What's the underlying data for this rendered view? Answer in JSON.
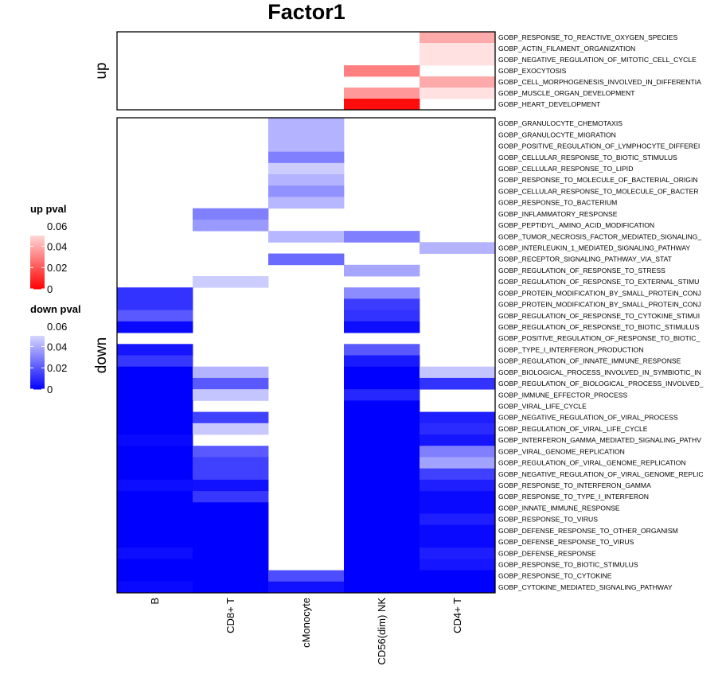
{
  "chart_data": {
    "type": "heatmap",
    "title": "Factor1",
    "columns": [
      "B",
      "CD8+ T",
      "cMonocyte",
      "CD56(dim) NK",
      "CD4+ T"
    ],
    "blocks": [
      {
        "name": "up",
        "rows": [
          "GOBP_RESPONSE_TO_REACTIVE_OXYGEN_SPECIES",
          "GOBP_ACTIN_FILAMENT_ORGANIZATION",
          "GOBP_NEGATIVE_REGULATION_OF_MITOTIC_CELL_CYCLE",
          "GOBP_EXOCYTOSIS",
          "GOBP_CELL_MORPHOGENESIS_INVOLVED_IN_DIFFERENTIA",
          "GOBP_MUSCLE_ORGAN_DEVELOPMENT",
          "GOBP_HEART_DEVELOPMENT"
        ],
        "values": [
          [
            null,
            null,
            null,
            null,
            0.04
          ],
          [
            null,
            null,
            null,
            null,
            0.053
          ],
          [
            null,
            null,
            null,
            null,
            0.053
          ],
          [
            null,
            null,
            null,
            0.03,
            null
          ],
          [
            null,
            null,
            null,
            null,
            0.04
          ],
          [
            null,
            null,
            null,
            0.036,
            0.053
          ],
          [
            null,
            null,
            null,
            0.003,
            null
          ]
        ]
      },
      {
        "name": "down",
        "rows": [
          "GOBP_GRANULOCYTE_CHEMOTAXIS",
          "GOBP_GRANULOCYTE_MIGRATION",
          "GOBP_POSITIVE_REGULATION_OF_LYMPHOCYTE_DIFFEREI",
          "GOBP_CELLULAR_RESPONSE_TO_BIOTIC_STIMULUS",
          "GOBP_CELLULAR_RESPONSE_TO_LIPID",
          "GOBP_RESPONSE_TO_MOLECULE_OF_BACTERIAL_ORIGIN",
          "GOBP_CELLULAR_RESPONSE_TO_MOLECULE_OF_BACTER",
          "GOBP_RESPONSE_TO_BACTERIUM",
          "GOBP_INFLAMMATORY_RESPONSE",
          "GOBP_PEPTIDYL_AMINO_ACID_MODIFICATION",
          "GOBP_TUMOR_NECROSIS_FACTOR_MEDIATED_SIGNALING_",
          "GOBP_INTERLEUKIN_1_MEDIATED_SIGNALING_PATHWAY",
          "GOBP_RECEPTOR_SIGNALING_PATHWAY_VIA_STAT",
          "GOBP_REGULATION_OF_RESPONSE_TO_STRESS",
          "GOBP_REGULATION_OF_RESPONSE_TO_EXTERNAL_STIMU",
          "GOBP_PROTEIN_MODIFICATION_BY_SMALL_PROTEIN_CONJ",
          "GOBP_PROTEIN_MODIFICATION_BY_SMALL_PROTEIN_CONJ",
          "GOBP_REGULATION_OF_RESPONSE_TO_CYTOKINE_STIMUI",
          "GOBP_REGULATION_OF_RESPONSE_TO_BIOTIC_STIMULUS",
          "GOBP_POSITIVE_REGULATION_OF_RESPONSE_TO_BIOTIC_",
          "GOBP_TYPE_I_INTERFERON_PRODUCTION",
          "GOBP_REGULATION_OF_INNATE_IMMUNE_RESPONSE",
          "GOBP_BIOLOGICAL_PROCESS_INVOLVED_IN_SYMBIOTIC_IN",
          "GOBP_REGULATION_OF_BIOLOGICAL_PROCESS_INVOLVED_",
          "GOBP_IMMUNE_EFFECTOR_PROCESS",
          "GOBP_VIRAL_LIFE_CYCLE",
          "GOBP_NEGATIVE_REGULATION_OF_VIRAL_PROCESS",
          "GOBP_REGULATION_OF_VIRAL_LIFE_CYCLE",
          "GOBP_INTERFERON_GAMMA_MEDIATED_SIGNALING_PATHV",
          "GOBP_VIRAL_GENOME_REPLICATION",
          "GOBP_REGULATION_OF_VIRAL_GENOME_REPLICATION",
          "GOBP_NEGATIVE_REGULATION_OF_VIRAL_GENOME_REPLIC",
          "GOBP_RESPONSE_TO_INTERFERON_GAMMA",
          "GOBP_RESPONSE_TO_TYPE_I_INTERFERON",
          "GOBP_INNATE_IMMUNE_RESPONSE",
          "GOBP_RESPONSE_TO_VIRUS",
          "GOBP_DEFENSE_RESPONSE_TO_OTHER_ORGANISM",
          "GOBP_DEFENSE_RESPONSE_TO_VIRUS",
          "GOBP_DEFENSE_RESPONSE",
          "GOBP_RESPONSE_TO_BIOTIC_STIMULUS",
          "GOBP_RESPONSE_TO_CYTOKINE",
          "GOBP_CYTOKINE_MEDIATED_SIGNALING_PATHWAY"
        ],
        "values": [
          [
            null,
            null,
            0.042,
            null,
            null
          ],
          [
            null,
            null,
            0.042,
            null,
            null
          ],
          [
            null,
            null,
            0.042,
            null,
            null
          ],
          [
            null,
            null,
            0.03,
            null,
            null
          ],
          [
            null,
            null,
            0.048,
            null,
            null
          ],
          [
            null,
            null,
            0.042,
            null,
            null
          ],
          [
            null,
            null,
            0.034,
            null,
            null
          ],
          [
            null,
            null,
            0.043,
            null,
            null
          ],
          [
            null,
            0.03,
            null,
            null,
            null
          ],
          [
            null,
            0.036,
            null,
            null,
            null
          ],
          [
            null,
            null,
            0.043,
            0.03,
            null
          ],
          [
            null,
            null,
            null,
            null,
            0.042
          ],
          [
            null,
            null,
            0.025,
            null,
            null
          ],
          [
            null,
            null,
            null,
            0.039,
            null
          ],
          [
            null,
            0.048,
            null,
            null,
            null
          ],
          [
            0.012,
            null,
            null,
            0.033,
            null
          ],
          [
            0.012,
            null,
            null,
            0.014,
            null
          ],
          [
            0.021,
            null,
            null,
            0.012,
            null
          ],
          [
            0.002,
            null,
            null,
            0.003,
            null
          ],
          [
            null,
            null,
            null,
            null,
            null
          ],
          [
            0.005,
            null,
            null,
            0.021,
            null
          ],
          [
            0.013,
            null,
            null,
            0.006,
            null
          ],
          [
            0.0,
            0.042,
            null,
            0.0,
            0.046
          ],
          [
            0.0,
            0.021,
            null,
            0.0,
            0.012
          ],
          [
            0.0,
            0.046,
            null,
            0.009,
            null
          ],
          [
            0.0,
            null,
            null,
            0.0,
            null
          ],
          [
            0.0,
            0.015,
            null,
            0.0,
            0.007
          ],
          [
            0.0,
            0.047,
            null,
            0.0,
            0.01
          ],
          [
            0.002,
            null,
            null,
            0.0,
            0.005
          ],
          [
            0.0,
            0.021,
            null,
            0.0,
            0.03
          ],
          [
            0.0,
            0.015,
            null,
            0.0,
            0.038
          ],
          [
            0.0,
            0.015,
            null,
            0.0,
            0.015
          ],
          [
            0.003,
            0.004,
            null,
            0.0,
            0.007
          ],
          [
            0.0,
            0.013,
            null,
            0.0,
            0.002
          ],
          [
            0.0,
            0.0,
            null,
            0.0,
            0.002
          ],
          [
            0.0,
            0.0,
            null,
            0.0,
            0.007
          ],
          [
            0.0,
            0.0,
            null,
            0.0,
            0.002
          ],
          [
            0.0,
            0.0,
            null,
            0.0,
            0.002
          ],
          [
            0.003,
            0.0,
            null,
            0.0,
            0.007
          ],
          [
            0.0,
            0.0,
            null,
            0.0,
            0.005
          ],
          [
            0.0,
            0.0,
            0.018,
            0.0,
            0.0
          ],
          [
            0.002,
            0.0,
            0.004,
            0.0,
            0.0
          ]
        ]
      }
    ],
    "legends": [
      {
        "title": "up pval",
        "ticks": [
          "0.06",
          "0.04",
          "0.02",
          "0"
        ],
        "range": [
          0,
          0.06
        ],
        "low_color": "#ff0000",
        "high_color": "#ffffff"
      },
      {
        "title": "down pval",
        "ticks": [
          "0.06",
          "0.04",
          "0.02",
          "0"
        ],
        "range": [
          0,
          0.06
        ],
        "low_color": "#0000ff",
        "high_color": "#ffffff"
      }
    ],
    "xlabel": "",
    "ylabel": ""
  }
}
